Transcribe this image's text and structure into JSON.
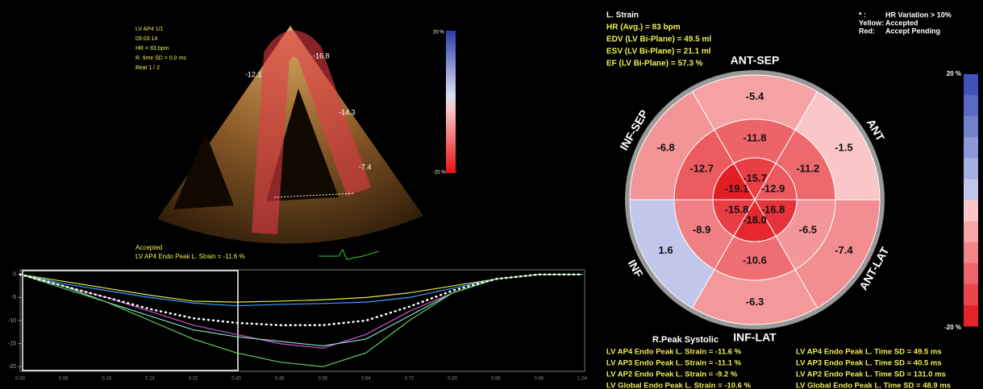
{
  "ultrasound": {
    "info": [
      "LV AP4 1/1",
      "09:03:14",
      "HR = 83 bpm",
      "R. time SD = 0.0 ms",
      "Beat 1 / 2"
    ],
    "segment_labels": [
      "-16.8",
      "-12.1",
      "-14.3",
      "-7.4"
    ],
    "status": "Accepted",
    "peak": "LV AP4 Endo Peak L. Strain = -11.6 %",
    "scale": [
      {
        "value": 20,
        "label": "20 %"
      },
      {
        "value": -20,
        "label": "-20 %"
      }
    ]
  },
  "strain_plot": {
    "ylim": [
      1,
      -21
    ],
    "yticks": [
      0,
      -5,
      -10,
      -15,
      -20
    ],
    "x_labels": [
      "0.00",
      "0.08",
      "0.16",
      "0.24",
      "0.32",
      "0.40",
      "0.48",
      "0.56",
      "0.64",
      "0.72",
      "0.80",
      "0.88",
      "0.96",
      "1.04"
    ],
    "series": [
      {
        "color": "#e8e84a",
        "values": [
          0,
          -1.5,
          -3,
          -4.5,
          -5.8,
          -6,
          -5.8,
          -5.5,
          -5,
          -4,
          -2.5,
          -1,
          0,
          0
        ]
      },
      {
        "color": "#3aa0ff",
        "values": [
          0,
          -2,
          -3.5,
          -5,
          -6.2,
          -6.8,
          -6.5,
          -6.3,
          -6,
          -5,
          -3,
          -1,
          0,
          0
        ]
      },
      {
        "color": "#d050d0",
        "values": [
          0,
          -2.5,
          -5,
          -8,
          -11,
          -13,
          -15,
          -16,
          -13,
          -8,
          -4,
          -1,
          0,
          0
        ]
      },
      {
        "color": "#80e0c0",
        "values": [
          0,
          -2.5,
          -6,
          -9,
          -12,
          -13.5,
          -14.5,
          -15.5,
          -14,
          -9,
          -4,
          -1,
          0,
          0
        ]
      },
      {
        "color": "#60d060",
        "values": [
          0,
          -3,
          -6,
          -10,
          -14,
          -17,
          -19,
          -20,
          -17,
          -10,
          -4,
          -1,
          0,
          0
        ]
      },
      {
        "color": "#ffffff",
        "values": [
          0,
          -2.5,
          -5,
          -7.5,
          -9.5,
          -10.5,
          -11,
          -11,
          -10,
          -7,
          -3.5,
          -1,
          0,
          0
        ]
      }
    ]
  },
  "header": {
    "title": "L. Strain",
    "lines": [
      "HR (Avg.) = 83 bpm",
      "EDV (LV Bi-Plane) = 49.5 ml",
      "ESV (LV Bi-Plane) = 21.1 ml",
      "EF (LV Bi-Plane) = 57.3 %"
    ]
  },
  "legend": [
    [
      "* :",
      "HR Variation > 10%"
    ],
    [
      "Yellow:",
      "Accepted"
    ],
    [
      "Red:",
      "Accept Pending"
    ]
  ],
  "bullseye": {
    "walls": [
      "ANT-SEP",
      "ANT",
      "ANT-LAT",
      "INF-LAT",
      "INF",
      "INF-SEP"
    ],
    "basal": [
      -5.4,
      -1.5,
      -7.4,
      -6.3,
      1.6,
      -6.8
    ],
    "mid": [
      -11.8,
      -11.2,
      -6.5,
      -10.6,
      -8.9,
      -12.7
    ],
    "apical": {
      "values": [
        -15.7,
        -12.9,
        -16.8,
        -18,
        -15.8,
        -19.1
      ],
      "value_labels": [
        "-15.7",
        "-12.9",
        "-16.8",
        "-18.0",
        "-15.8",
        "-19.1"
      ]
    },
    "scale": [
      {
        "value": 20,
        "label": "20 %"
      },
      {
        "value": -20,
        "label": "-20 %"
      }
    ]
  },
  "summary": {
    "title": "R.Peak Systolic",
    "left": [
      "LV AP4 Endo Peak L. Strain = -11.6 %",
      "LV AP3 Endo Peak L. Strain = -11.1 %",
      "LV AP2 Endo Peak L. Strain = -9.2 %",
      "LV Global Endo Peak L. Strain = -10.6 %"
    ],
    "right": [
      "LV AP4 Endo Peak L. Time SD = 49.5 ms",
      "LV AP3 Endo Peak L. Time SD = 40.5 ms",
      "LV AP2 Endo Peak L. Time SD = 131.0 ms",
      "LV Global Endo Peak L. Time SD = 48.9 ms"
    ]
  }
}
